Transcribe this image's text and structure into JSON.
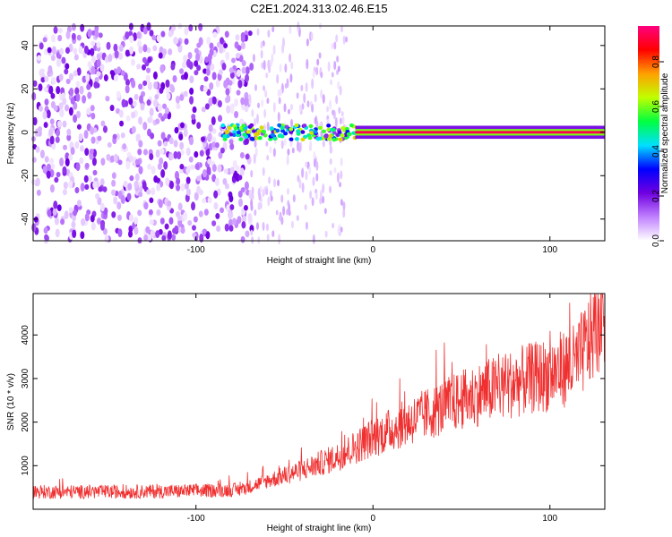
{
  "title": "C2E1.2024.313.02.46.E15",
  "chart_data": [
    {
      "type": "heatmap",
      "xlabel": "Height of straight line (km)",
      "ylabel": "Frequency (Hz)",
      "xlim": [
        -192,
        131
      ],
      "ylim": [
        -50,
        49
      ],
      "xticks": [
        -100,
        0,
        100
      ],
      "yticks": [
        -40,
        -20,
        0,
        20,
        40
      ],
      "colorbar": {
        "label": "Normalized spectral amplitude",
        "range": [
          0,
          0.96
        ],
        "ticks": [
          0.0,
          0.2,
          0.4,
          0.6,
          0.8
        ],
        "colors": [
          "#ffffff",
          "#c080ff",
          "#7000e0",
          "#0000ff",
          "#00e0ff",
          "#00ff40",
          "#c0ff00",
          "#ffa000",
          "#ff0000",
          "#ff0080"
        ]
      },
      "features": [
        {
          "description_region": "broadband noise",
          "x_range": [
            -192,
            -70
          ],
          "freq_range": [
            -50,
            49
          ],
          "amplitude": 0.1
        },
        {
          "description_region": "fading noise",
          "x_range": [
            -70,
            -20
          ],
          "freq_range": [
            -50,
            49
          ],
          "amplitude": 0.03
        },
        {
          "description_region": "signal onset band",
          "x_range": [
            -85,
            -10
          ],
          "freq_range": [
            -4,
            4
          ],
          "amplitude": 0.4
        },
        {
          "description_region": "narrow carrier line",
          "x_range": [
            -10,
            131
          ],
          "freq_center": 0,
          "amplitude": 0.92
        }
      ]
    },
    {
      "type": "line",
      "xlabel": "Height of straight line (km)",
      "ylabel": "SNR (10 * v/v)",
      "xlim": [
        -192,
        131
      ],
      "ylim": [
        0,
        4950
      ],
      "xticks": [
        -100,
        0,
        100
      ],
      "yticks": [
        1000,
        2000,
        3000,
        4000
      ],
      "color": "#f03030",
      "envelope": {
        "x": [
          -192,
          -140,
          -100,
          -75,
          -60,
          -40,
          -20,
          0,
          20,
          40,
          60,
          80,
          100,
          115,
          131
        ],
        "y": [
          400,
          400,
          420,
          450,
          650,
          900,
          1200,
          1650,
          2000,
          2350,
          2650,
          2900,
          3100,
          3350,
          4500
        ]
      }
    }
  ]
}
